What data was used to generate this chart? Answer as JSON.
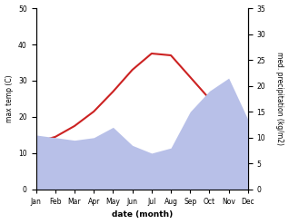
{
  "months": [
    "Jan",
    "Feb",
    "Mar",
    "Apr",
    "May",
    "Jun",
    "Jul",
    "Aug",
    "Sep",
    "Oct",
    "Nov",
    "Dec"
  ],
  "month_indices": [
    0,
    1,
    2,
    3,
    4,
    5,
    6,
    7,
    8,
    9,
    10,
    11
  ],
  "temp_max": [
    13.0,
    14.5,
    17.5,
    21.5,
    27.0,
    33.0,
    37.5,
    37.0,
    31.0,
    25.0,
    19.5,
    14.5
  ],
  "precip": [
    10.5,
    10.0,
    9.5,
    10.0,
    12.0,
    8.5,
    7.0,
    8.0,
    15.0,
    19.0,
    21.5,
    13.5
  ],
  "temp_color": "#cc2222",
  "precip_fill_color": "#b8c0e8",
  "temp_ylim": [
    0,
    50
  ],
  "precip_ylim": [
    0,
    35
  ],
  "temp_yticks": [
    0,
    10,
    20,
    30,
    40,
    50
  ],
  "precip_yticks": [
    0,
    5,
    10,
    15,
    20,
    25,
    30,
    35
  ],
  "xlabel": "date (month)",
  "ylabel_left": "max temp (C)",
  "ylabel_right": "med. precipitation (kg/m2)",
  "bg_color": "#ffffff"
}
